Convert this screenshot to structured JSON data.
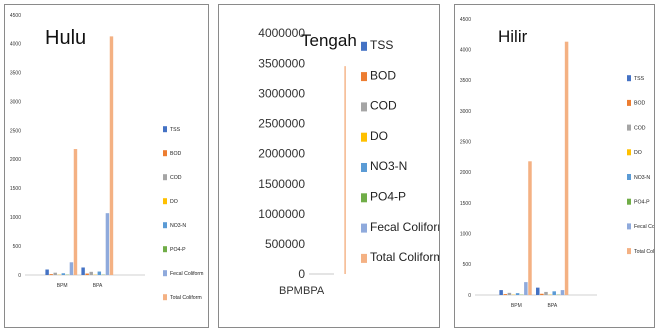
{
  "chart_data": [
    {
      "type": "bar",
      "title": "Hulu",
      "categories": [
        "BPM",
        "BPA"
      ],
      "ylim": [
        0,
        4500
      ],
      "y_ticks": [
        0,
        500,
        1000,
        1500,
        2000,
        2500,
        3000,
        3500,
        4000,
        4500
      ],
      "grid": false,
      "legend_position": "right",
      "series": [
        {
          "name": "TSS",
          "color": "#4472c4",
          "values": [
            95,
            130
          ]
        },
        {
          "name": "BOD",
          "color": "#ed7d31",
          "values": [
            15,
            25
          ]
        },
        {
          "name": "COD",
          "color": "#a5a5a5",
          "values": [
            40,
            55
          ]
        },
        {
          "name": "DO",
          "color": "#ffc000",
          "values": [
            5,
            5
          ]
        },
        {
          "name": "NO3-N",
          "color": "#5b9bd5",
          "values": [
            30,
            60
          ]
        },
        {
          "name": "PO4-P",
          "color": "#70ad47",
          "values": [
            5,
            5
          ]
        },
        {
          "name": "Fecal Coliform",
          "color": "#8faadc",
          "values": [
            220,
            1070
          ]
        },
        {
          "name": "Total Coliform",
          "color": "#f4b183",
          "values": [
            2180,
            4130
          ]
        }
      ]
    },
    {
      "type": "bar",
      "title": "Tengah",
      "categories": [
        "BPM",
        "BPA"
      ],
      "ylim": [
        0,
        4000000
      ],
      "y_ticks": [
        0,
        500000,
        1000000,
        1500000,
        2000000,
        2500000,
        3000000,
        3500000,
        4000000
      ],
      "grid": false,
      "legend_position": "right",
      "series": [
        {
          "name": "TSS",
          "color": "#4472c4",
          "values": [
            0,
            0
          ]
        },
        {
          "name": "BOD",
          "color": "#ed7d31",
          "values": [
            0,
            0
          ]
        },
        {
          "name": "COD",
          "color": "#a5a5a5",
          "values": [
            0,
            0
          ]
        },
        {
          "name": "DO",
          "color": "#ffc000",
          "values": [
            0,
            0
          ]
        },
        {
          "name": "NO3-N",
          "color": "#5b9bd5",
          "values": [
            0,
            0
          ]
        },
        {
          "name": "PO4-P",
          "color": "#70ad47",
          "values": [
            0,
            0
          ]
        },
        {
          "name": "Fecal Coliform",
          "color": "#8faadc",
          "values": [
            0,
            0
          ]
        },
        {
          "name": "Total Coliform",
          "color": "#f4b183",
          "values": [
            0,
            3450000
          ]
        }
      ]
    },
    {
      "type": "bar",
      "title": "Hilir",
      "categories": [
        "BPM",
        "BPA"
      ],
      "ylim": [
        0,
        4500
      ],
      "y_ticks": [
        0,
        500,
        1000,
        1500,
        2000,
        2500,
        3000,
        3500,
        4000,
        4500
      ],
      "grid": false,
      "legend_position": "right",
      "series": [
        {
          "name": "TSS",
          "color": "#4472c4",
          "values": [
            80,
            120
          ]
        },
        {
          "name": "BOD",
          "color": "#ed7d31",
          "values": [
            15,
            20
          ]
        },
        {
          "name": "COD",
          "color": "#a5a5a5",
          "values": [
            35,
            50
          ]
        },
        {
          "name": "DO",
          "color": "#ffc000",
          "values": [
            5,
            5
          ]
        },
        {
          "name": "NO3-N",
          "color": "#5b9bd5",
          "values": [
            30,
            60
          ]
        },
        {
          "name": "PO4-P",
          "color": "#70ad47",
          "values": [
            5,
            5
          ]
        },
        {
          "name": "Fecal Coliform",
          "color": "#8faadc",
          "values": [
            210,
            80
          ]
        },
        {
          "name": "Total Coliform",
          "color": "#f4b183",
          "values": [
            2180,
            4130
          ]
        }
      ]
    }
  ]
}
